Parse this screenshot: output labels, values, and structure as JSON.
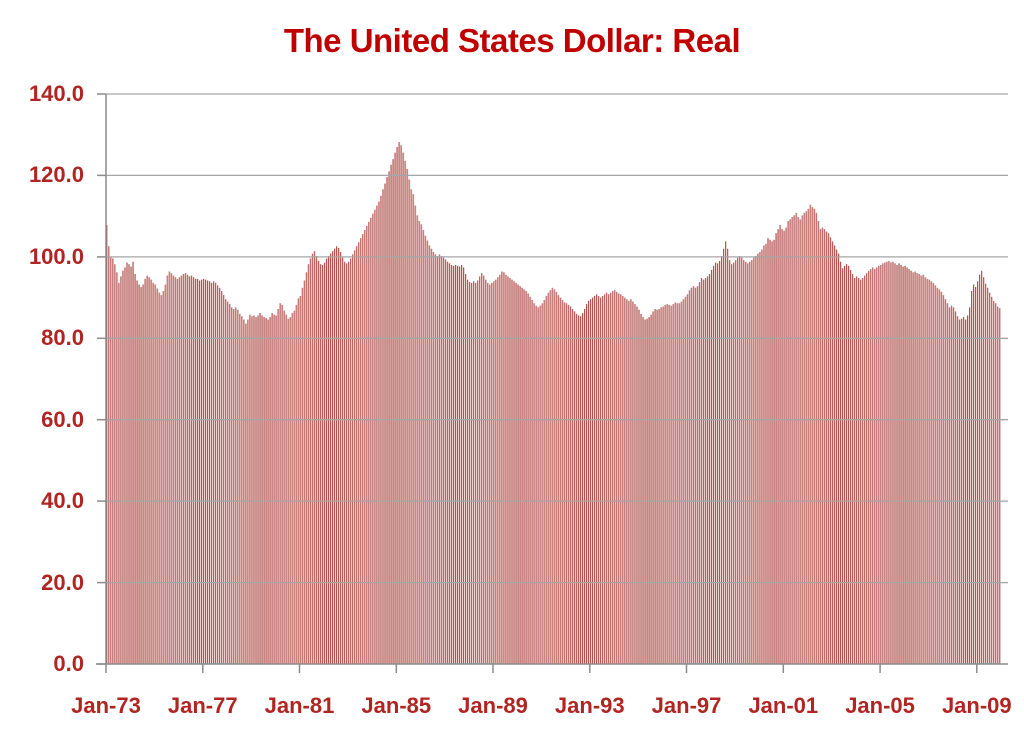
{
  "title": {
    "text": "The United States Dollar: Real"
  },
  "colors": {
    "title": "#c00000",
    "tick_label": "#b02421",
    "gridline": "#a6a6a6",
    "axis": "#8c8c8c",
    "bar_dark": "#b0514e",
    "bar_light": "#e2b6b2",
    "background": "#ffffff"
  },
  "chart_data": {
    "type": "bar",
    "title": "The United States Dollar: Real",
    "xlabel": "",
    "ylabel": "",
    "x_unit": "month",
    "x_start": "Jan-1973",
    "x_end": "Dec-2009",
    "xtick_labels": [
      "Jan-73",
      "Jan-77",
      "Jan-81",
      "Jan-85",
      "Jan-89",
      "Jan-93",
      "Jan-97",
      "Jan-01",
      "Jan-05",
      "Jan-09"
    ],
    "xtick_interval_months": 48,
    "ylim": [
      0,
      140
    ],
    "ytick_step": 20,
    "ytick_labels": [
      "0.0",
      "20.0",
      "40.0",
      "60.0",
      "80.0",
      "100.0",
      "120.0",
      "140.0"
    ],
    "grid": true,
    "legend": "none",
    "values": [
      107.8,
      102.6,
      100.0,
      99.6,
      98.2,
      96.2,
      93.6,
      95.2,
      96.6,
      97.4,
      98.6,
      98.2,
      97.6,
      98.8,
      95.8,
      94.2,
      93.2,
      92.6,
      93.2,
      94.6,
      95.4,
      95.0,
      94.4,
      93.6,
      93.2,
      92.2,
      91.2,
      90.6,
      91.6,
      93.2,
      95.4,
      96.4,
      96.0,
      95.4,
      95.0,
      94.6,
      95.0,
      95.4,
      95.8,
      96.0,
      95.6,
      95.2,
      95.4,
      95.0,
      94.6,
      94.6,
      94.2,
      94.4,
      94.6,
      94.4,
      94.2,
      94.0,
      93.6,
      94.0,
      93.6,
      93.0,
      92.4,
      91.6,
      90.6,
      89.6,
      89.0,
      88.4,
      87.6,
      87.2,
      87.6,
      87.0,
      86.0,
      85.4,
      84.6,
      83.6,
      84.6,
      85.8,
      85.4,
      85.6,
      85.2,
      85.6,
      86.2,
      85.6,
      85.2,
      85.0,
      84.6,
      85.2,
      86.2,
      85.8,
      85.6,
      87.2,
      88.6,
      88.2,
      86.8,
      85.8,
      84.8,
      85.2,
      86.2,
      86.8,
      88.2,
      89.8,
      90.4,
      92.4,
      94.2,
      96.2,
      98.2,
      99.6,
      100.8,
      101.4,
      100.2,
      99.0,
      98.2,
      98.0,
      98.6,
      99.6,
      100.2,
      100.8,
      101.4,
      102.0,
      102.6,
      102.2,
      101.2,
      99.8,
      98.8,
      98.4,
      98.8,
      99.6,
      100.6,
      101.6,
      102.6,
      103.6,
      104.6,
      105.6,
      106.6,
      107.6,
      108.6,
      109.6,
      110.6,
      111.6,
      112.6,
      113.6,
      115.0,
      116.6,
      118.0,
      119.6,
      121.0,
      122.6,
      124.0,
      125.6,
      127.0,
      128.2,
      127.4,
      125.6,
      123.6,
      121.6,
      119.0,
      116.6,
      115.4,
      112.6,
      110.2,
      108.8,
      108.0,
      106.6,
      105.2,
      104.0,
      102.8,
      102.0,
      101.2,
      100.6,
      100.2,
      100.6,
      100.2,
      99.8,
      99.4,
      98.8,
      98.4,
      98.0,
      97.8,
      98.0,
      97.8,
      97.6,
      98.0,
      97.4,
      95.8,
      94.4,
      93.8,
      93.6,
      94.0,
      93.6,
      94.2,
      95.2,
      96.0,
      95.4,
      94.4,
      93.6,
      93.2,
      93.6,
      94.0,
      94.4,
      95.0,
      95.6,
      96.4,
      96.2,
      95.6,
      95.2,
      94.8,
      94.4,
      94.0,
      93.6,
      93.2,
      92.8,
      92.4,
      92.0,
      91.6,
      91.0,
      90.2,
      89.4,
      88.6,
      88.0,
      87.6,
      88.0,
      88.6,
      89.4,
      90.4,
      91.2,
      91.8,
      92.4,
      92.0,
      91.4,
      90.6,
      90.0,
      89.4,
      88.8,
      88.6,
      88.2,
      87.8,
      87.2,
      86.6,
      86.0,
      85.6,
      85.4,
      86.2,
      87.2,
      88.4,
      89.2,
      89.6,
      90.0,
      90.4,
      90.8,
      90.4,
      90.0,
      90.4,
      90.8,
      91.2,
      90.8,
      91.2,
      91.6,
      91.8,
      91.4,
      91.0,
      90.8,
      90.4,
      90.0,
      89.6,
      89.2,
      89.6,
      89.0,
      88.4,
      87.8,
      87.0,
      86.0,
      85.2,
      84.6,
      84.8,
      85.2,
      85.8,
      86.6,
      87.2,
      87.0,
      87.2,
      87.6,
      87.8,
      88.2,
      88.4,
      88.2,
      88.0,
      88.4,
      88.8,
      88.6,
      88.6,
      89.0,
      89.6,
      90.2,
      90.8,
      91.8,
      92.4,
      92.8,
      92.4,
      92.8,
      93.8,
      94.8,
      94.4,
      94.8,
      95.2,
      95.8,
      96.8,
      97.8,
      98.6,
      98.4,
      99.0,
      100.2,
      102.0,
      103.8,
      102.0,
      99.2,
      98.2,
      98.6,
      99.2,
      99.8,
      100.2,
      99.8,
      99.2,
      98.8,
      98.4,
      98.8,
      99.2,
      99.8,
      100.2,
      100.8,
      101.2,
      101.8,
      102.8,
      103.2,
      104.6,
      104.2,
      103.8,
      104.2,
      105.8,
      106.8,
      107.8,
      106.8,
      106.4,
      107.2,
      108.8,
      109.2,
      109.8,
      110.2,
      110.8,
      109.8,
      109.2,
      110.2,
      110.8,
      111.2,
      111.8,
      112.8,
      112.2,
      111.8,
      110.8,
      108.8,
      106.8,
      107.2,
      106.8,
      106.2,
      105.8,
      104.8,
      103.8,
      102.8,
      101.8,
      100.8,
      98.8,
      97.2,
      97.8,
      98.2,
      97.8,
      96.8,
      95.8,
      94.8,
      95.2,
      94.8,
      94.4,
      94.8,
      95.4,
      96.0,
      96.6,
      97.0,
      97.4,
      97.0,
      97.4,
      97.8,
      98.0,
      98.4,
      98.6,
      98.8,
      99.0,
      98.6,
      98.8,
      98.4,
      98.0,
      98.4,
      98.0,
      97.6,
      97.8,
      97.4,
      97.0,
      96.6,
      96.2,
      96.4,
      96.0,
      95.8,
      95.4,
      95.6,
      95.0,
      94.6,
      94.4,
      94.0,
      93.6,
      93.0,
      92.4,
      92.0,
      91.4,
      90.6,
      89.6,
      88.6,
      87.6,
      88.0,
      87.6,
      86.6,
      85.4,
      84.6,
      84.8,
      85.2,
      84.6,
      85.6,
      87.6,
      91.6,
      93.2,
      92.6,
      94.0,
      95.6,
      96.6,
      95.0,
      93.4,
      92.4,
      91.2,
      90.2,
      89.2,
      88.6,
      87.8,
      87.4
    ]
  }
}
